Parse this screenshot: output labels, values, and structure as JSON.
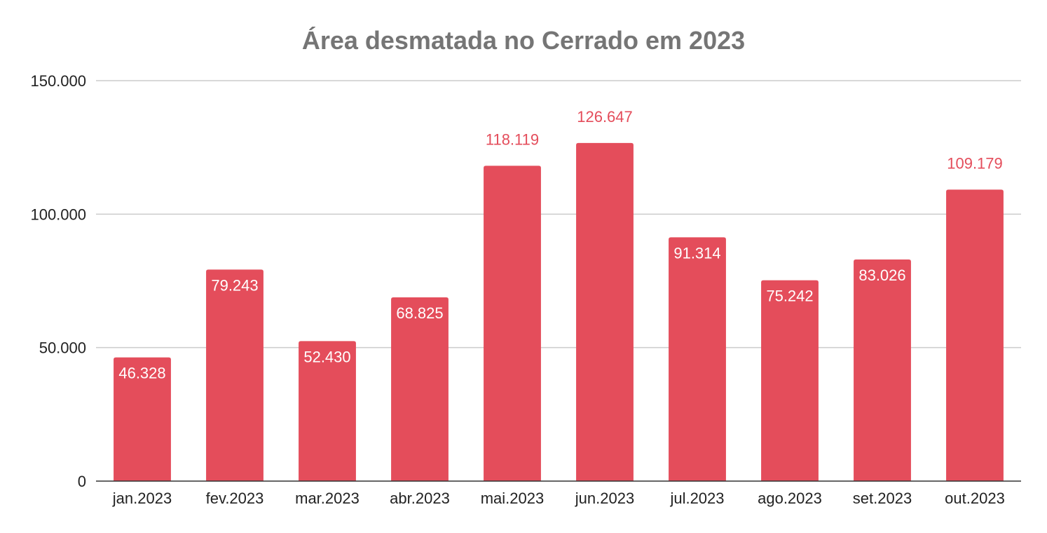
{
  "chart_data": {
    "type": "bar",
    "title": "Área desmatada no Cerrado em 2023",
    "xlabel": "",
    "ylabel": "",
    "categories": [
      "jan.2023",
      "fev.2023",
      "mar.2023",
      "abr.2023",
      "mai.2023",
      "jun.2023",
      "jul.2023",
      "ago.2023",
      "set.2023",
      "out.2023"
    ],
    "values": [
      46328,
      79243,
      52430,
      68825,
      118119,
      126647,
      91314,
      75242,
      83026,
      109179
    ],
    "data_labels": [
      "46.328",
      "79.243",
      "52.430",
      "68.825",
      "118.119",
      "126.647",
      "91.314",
      "75.242",
      "83.026",
      "109.179"
    ],
    "ylim": [
      0,
      150000
    ],
    "yticks": [
      0,
      50000,
      100000,
      150000
    ],
    "ytick_labels": [
      "0",
      "50.000",
      "100.000",
      "150.000"
    ],
    "grid": true,
    "legend": "none",
    "colors": {
      "bar": "#e44d5b",
      "label_outside": "#e44d5b",
      "label_inside": "#ffffff",
      "title": "#757575",
      "gridline": "#cccccc",
      "baseline": "#333333",
      "tick_text": "#222222"
    }
  }
}
